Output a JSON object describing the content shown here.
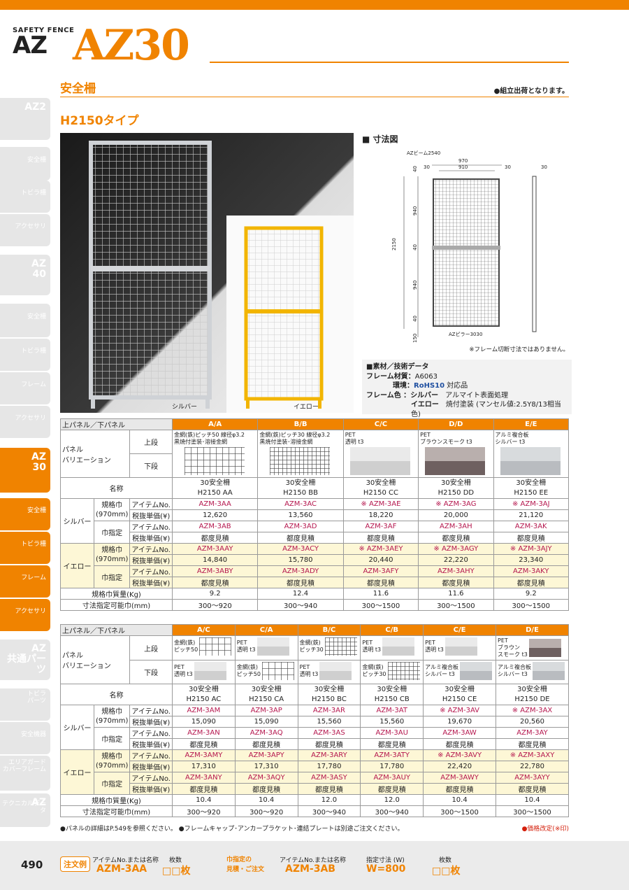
{
  "brand": {
    "small": "SAFETY FENCE",
    "big": "AZ",
    "model": "AZ30"
  },
  "section": {
    "title": "安全柵",
    "note": "●組立出荷となります。",
    "subtitle": "H2150タイプ"
  },
  "sidebar": [
    {
      "h": "AZ2",
      "t": ""
    },
    {
      "h": "",
      "t": "安全柵"
    },
    {
      "h": "",
      "t": "トビラ柵"
    },
    {
      "h": "",
      "t": "アクセサリ"
    },
    {
      "h": "AZ\n40",
      "t": ""
    },
    {
      "h": "",
      "t": "安全柵"
    },
    {
      "h": "",
      "t": "トビラ柵"
    },
    {
      "h": "",
      "t": "フレーム"
    },
    {
      "h": "",
      "t": "アクセサリ"
    },
    {
      "h": "AZ\n30",
      "t": ""
    },
    {
      "h": "",
      "t": "安全柵"
    },
    {
      "h": "",
      "t": "トビラ柵"
    },
    {
      "h": "",
      "t": "フレーム"
    },
    {
      "h": "",
      "t": "アクセサリ"
    },
    {
      "h": "AZ\n共通パーツ",
      "t": ""
    },
    {
      "h": "",
      "t": "トビラ\nパーツ"
    },
    {
      "h": "",
      "t": "安全機器"
    },
    {
      "h": "",
      "t": "エリアガード\nカバーフレーム"
    },
    {
      "h": "AZ",
      "t": "テクニカルデータ"
    }
  ],
  "photo": {
    "cap_silver": "シルバー",
    "cap_yellow": "イエロー"
  },
  "drawing": {
    "title": "■ 寸法図",
    "beam": "AZビーム2540",
    "pillar": "AZピラー3030",
    "d970": "970",
    "d910": "910",
    "d30a": "30",
    "d30b": "30",
    "d30c": "30",
    "d2150": "2150",
    "d940a": "940",
    "d940b": "940",
    "d40a": "40",
    "d40b": "40",
    "d40c": "40",
    "d150": "150",
    "note": "※フレーム切断寸法ではありません。"
  },
  "spec": {
    "head": "■素材／技術データ",
    "frame_lbl": "フレーム材質：",
    "frame_val": "A6063",
    "env_lbl": "環境：",
    "rohs": "RoHS10",
    "env_val": "対応品",
    "color_lbl": "フレーム色 ：",
    "silver_lbl": "シルバー",
    "silver_val": "アルマイト表面処理",
    "yellow_lbl": "イエロー",
    "yellow_val": "焼付塗装 (マンセル値:2.5Y8/13相当色)"
  },
  "table1": {
    "panel_head": "上パネル／下パネル",
    "var_lbl": "パネル\nバリエーション",
    "upper": "上段",
    "lower": "下段",
    "cols": [
      "A/A",
      "B/B",
      "C/C",
      "D/D",
      "E/E"
    ],
    "upper_desc": [
      "金網(鉄)ピッチ50 線径φ3.2\n黒焼付塗装･溶接金網",
      "金網(鉄)ピッチ30 線径φ3.2\n黒焼付塗装･溶接金網",
      "PET\n透明 t3",
      "PET\nブラウンスモーク t3",
      "アルミ複合板\nシルバー t3"
    ],
    "name_lbl": "名称",
    "names": [
      "30安全柵\nH2150 AA",
      "30安全柵\nH2150 BB",
      "30安全柵\nH2150 CC",
      "30安全柵\nH2150 DD",
      "30安全柵\nH2150 EE"
    ],
    "silver": "シルバー",
    "yellow": "イエロー",
    "std": "規格巾\n(970mm)",
    "spec": "巾指定",
    "item": "アイテムNo.",
    "price": "税抜単価(¥)",
    "s_std_item": [
      "AZM-3AA",
      "AZM-3AC",
      "※ AZM-3AE",
      "※ AZM-3AG",
      "※ AZM-3AJ"
    ],
    "s_std_price": [
      "12,620",
      "13,560",
      "18,220",
      "20,000",
      "21,120"
    ],
    "s_spec_item": [
      "AZM-3AB",
      "AZM-3AD",
      "AZM-3AF",
      "AZM-3AH",
      "AZM-3AK"
    ],
    "s_spec_price": [
      "都度見積",
      "都度見積",
      "都度見積",
      "都度見積",
      "都度見積"
    ],
    "y_std_item": [
      "AZM-3AAY",
      "AZM-3ACY",
      "※ AZM-3AEY",
      "※ AZM-3AGY",
      "※ AZM-3AJY"
    ],
    "y_std_price": [
      "14,840",
      "15,780",
      "20,440",
      "22,220",
      "23,340"
    ],
    "y_spec_item": [
      "AZM-3ABY",
      "AZM-3ADY",
      "AZM-3AFY",
      "AZM-3AHY",
      "AZM-3AKY"
    ],
    "y_spec_price": [
      "都度見積",
      "都度見積",
      "都度見積",
      "都度見積",
      "都度見積"
    ],
    "mass_lbl": "規格巾質量(Kg)",
    "mass": [
      "9.2",
      "12.4",
      "11.6",
      "11.6",
      "9.2"
    ],
    "range_lbl": "寸法指定可能巾(mm)",
    "range": [
      "300～920",
      "300～940",
      "300～1500",
      "300～1500",
      "300～1500"
    ]
  },
  "table2": {
    "panel_head": "上パネル／下パネル",
    "var_lbl": "パネル\nバリエーション",
    "upper": "上段",
    "lower": "下段",
    "cols": [
      "A/C",
      "C/A",
      "B/C",
      "C/B",
      "C/E",
      "D/E"
    ],
    "upper_desc": [
      "金網(鉄)\nピッチ50",
      "PET\n透明 t3",
      "金網(鉄)\nピッチ30",
      "PET\n透明 t3",
      "PET\n透明 t3",
      "PET\nブラウン\nスモーク t3"
    ],
    "lower_desc": [
      "PET\n透明 t3",
      "金網(鉄)\nピッチ50",
      "PET\n透明 t3",
      "金網(鉄)\nピッチ30",
      "アルミ複合板\nシルバー t3",
      "アルミ複合板\nシルバー t3"
    ],
    "name_lbl": "名称",
    "names": [
      "30安全柵\nH2150 AC",
      "30安全柵\nH2150 CA",
      "30安全柵\nH2150 BC",
      "30安全柵\nH2150 CB",
      "30安全柵\nH2150 CE",
      "30安全柵\nH2150 DE"
    ],
    "silver": "シルバー",
    "yellow": "イエロー",
    "std": "規格巾\n(970mm)",
    "spec": "巾指定",
    "item": "アイテムNo.",
    "price": "税抜単価(¥)",
    "s_std_item": [
      "AZM-3AM",
      "AZM-3AP",
      "AZM-3AR",
      "AZM-3AT",
      "※ AZM-3AV",
      "※ AZM-3AX"
    ],
    "s_std_price": [
      "15,090",
      "15,090",
      "15,560",
      "15,560",
      "19,670",
      "20,560"
    ],
    "s_spec_item": [
      "AZM-3AN",
      "AZM-3AQ",
      "AZM-3AS",
      "AZM-3AU",
      "AZM-3AW",
      "AZM-3AY"
    ],
    "s_spec_price": [
      "都度見積",
      "都度見積",
      "都度見積",
      "都度見積",
      "都度見積",
      "都度見積"
    ],
    "y_std_item": [
      "AZM-3AMY",
      "AZM-3APY",
      "AZM-3ARY",
      "AZM-3ATY",
      "※ AZM-3AVY",
      "※ AZM-3AXY"
    ],
    "y_std_price": [
      "17,310",
      "17,310",
      "17,780",
      "17,780",
      "22,420",
      "22,780"
    ],
    "y_spec_item": [
      "AZM-3ANY",
      "AZM-3AQY",
      "AZM-3ASY",
      "AZM-3AUY",
      "AZM-3AWY",
      "AZM-3AYY"
    ],
    "y_spec_price": [
      "都度見積",
      "都度見積",
      "都度見積",
      "都度見積",
      "都度見積",
      "都度見積"
    ],
    "mass_lbl": "規格巾質量(Kg)",
    "mass": [
      "10.4",
      "10.4",
      "12.0",
      "12.0",
      "10.4",
      "10.4"
    ],
    "range_lbl": "寸法指定可能巾(mm)",
    "range": [
      "300～920",
      "300～920",
      "300～940",
      "300～940",
      "300～1500",
      "300～1500"
    ]
  },
  "foot": {
    "note": "●パネルの詳細はP.549を参照ください。 ●フレームキャップ･アンカープラケット･連結プレートは別途ご注文ください。",
    "red": "●価格改定(※印)"
  },
  "footer": {
    "page": "490",
    "order": "注文例",
    "l1": "アイテムNo.または名称",
    "v1": "AZM-3AA",
    "l2": "枚数",
    "v2": "□□枚",
    "l3": "巾指定の\n見積・ご注文",
    "l4": "アイテムNo.または名称",
    "v4": "AZM-3AB",
    "l5": "指定寸法 (W)",
    "v5": "W=800",
    "l6": "枚数",
    "v6": "□□枚"
  }
}
